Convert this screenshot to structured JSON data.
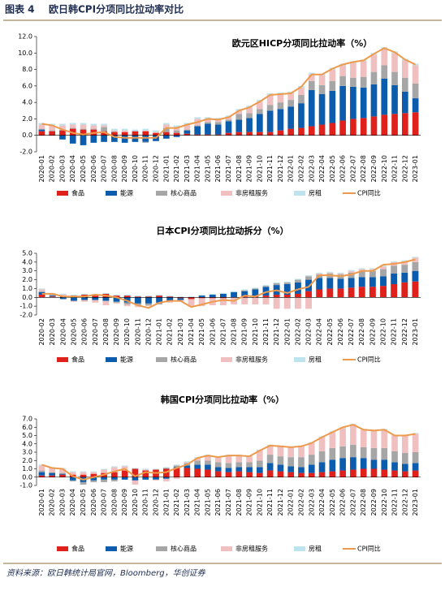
{
  "header": {
    "label": "图表 4",
    "title": "欧日韩CPI分项同比拉动率对比"
  },
  "source": "资料来源：欧日韩统计局官网，Bloomberg，华创证券",
  "chart_data": [
    {
      "type": "bar",
      "stacked": true,
      "title": "欧元区HICP分项同比拉动率（%）",
      "categories": [
        "2020-01",
        "2020-02",
        "2020-03",
        "2020-04",
        "2020-05",
        "2020-06",
        "2020-07",
        "2020-08",
        "2020-09",
        "2020-10",
        "2020-11",
        "2020-12",
        "2021-01",
        "2021-02",
        "2021-03",
        "2021-04",
        "2021-05",
        "2021-06",
        "2021-07",
        "2021-08",
        "2021-09",
        "2021-10",
        "2021-11",
        "2021-12",
        "2022-01",
        "2022-02",
        "2022-03",
        "2022-04",
        "2022-05",
        "2022-06",
        "2022-07",
        "2022-08",
        "2022-09",
        "2022-10",
        "2022-11",
        "2022-12",
        "2023-01"
      ],
      "ylim": [
        -2,
        12
      ],
      "yticks": [
        {
          "value": -2,
          "label": "-2.0"
        },
        {
          "value": 0,
          "label": "0.0"
        },
        {
          "value": 2,
          "label": "2.0"
        },
        {
          "value": 4,
          "label": "4.0"
        },
        {
          "value": 6,
          "label": "6.0"
        },
        {
          "value": 8,
          "label": "8.0"
        },
        {
          "value": 10,
          "label": "10.0"
        },
        {
          "value": 12,
          "label": "12.0"
        }
      ],
      "series": [
        {
          "name": "食品",
          "color": "#e0201b",
          "values": [
            0.5,
            0.5,
            0.6,
            0.8,
            0.7,
            0.7,
            0.5,
            0.4,
            0.4,
            0.5,
            0.5,
            0.3,
            0.4,
            0.3,
            0.2,
            0.1,
            0.1,
            0.1,
            0.3,
            0.4,
            0.4,
            0.4,
            0.4,
            0.6,
            0.8,
            0.9,
            1.1,
            1.3,
            1.5,
            1.8,
            2.0,
            2.1,
            2.3,
            2.5,
            2.6,
            2.7,
            2.8
          ]
        },
        {
          "name": "能源",
          "color": "#0b5cad",
          "values": [
            0.2,
            0.0,
            -0.5,
            -1.0,
            -1.2,
            -0.9,
            -0.8,
            -0.8,
            -0.9,
            -0.8,
            -0.8,
            -0.7,
            -0.4,
            -0.2,
            0.4,
            1.0,
            1.3,
            1.2,
            1.4,
            1.5,
            1.7,
            2.2,
            2.6,
            2.6,
            2.7,
            3.0,
            4.4,
            3.7,
            3.9,
            4.2,
            3.9,
            3.7,
            3.9,
            4.4,
            3.5,
            2.6,
            1.7
          ]
        },
        {
          "name": "核心商品",
          "color": "#a6a6a6",
          "values": [
            0.1,
            0.1,
            0.1,
            0.1,
            0.1,
            0.1,
            0.5,
            0.1,
            0.0,
            0.0,
            -0.1,
            0.0,
            0.5,
            0.3,
            0.1,
            0.1,
            0.2,
            0.3,
            0.2,
            0.7,
            0.6,
            0.6,
            0.7,
            0.8,
            0.8,
            1.0,
            1.1,
            1.1,
            1.2,
            1.2,
            1.1,
            1.3,
            1.5,
            1.6,
            1.6,
            1.7,
            1.8
          ]
        },
        {
          "name": "非房租服务",
          "color": "#f0c0c0",
          "values": [
            0.5,
            0.6,
            0.5,
            0.4,
            0.5,
            0.4,
            0.2,
            0.1,
            0.2,
            0.0,
            0.1,
            0.1,
            0.4,
            0.4,
            0.6,
            0.8,
            0.4,
            0.3,
            0.3,
            0.4,
            0.7,
            0.9,
            1.2,
            1.0,
            0.8,
            0.9,
            0.8,
            1.2,
            1.4,
            1.3,
            1.8,
            1.9,
            2.1,
            2.0,
            2.3,
            2.1,
            2.2
          ]
        },
        {
          "name": "房租",
          "color": "#bde3ec",
          "values": [
            0.2,
            0.2,
            0.2,
            0.2,
            0.2,
            0.2,
            0.2,
            0.2,
            0.2,
            0.2,
            0.2,
            0.2,
            0.2,
            0.2,
            0.2,
            0.2,
            0.2,
            0.2,
            0.2,
            0.2,
            0.2,
            0.2,
            0.2,
            0.2,
            0.2,
            0.2,
            0.2,
            0.2,
            0.2,
            0.2,
            0.2,
            0.2,
            0.2,
            0.2,
            0.2,
            0.2,
            0.2
          ]
        },
        {
          "name": "CPI同比",
          "type": "line",
          "color": "#ed9a4c",
          "values": [
            1.4,
            1.2,
            0.7,
            0.3,
            0.1,
            0.3,
            0.4,
            -0.2,
            -0.3,
            -0.3,
            -0.3,
            -0.3,
            0.9,
            0.9,
            1.3,
            1.6,
            2.0,
            1.9,
            2.2,
            3.0,
            3.4,
            4.1,
            4.9,
            5.0,
            5.1,
            5.9,
            7.4,
            7.4,
            8.1,
            8.6,
            8.9,
            9.1,
            9.9,
            10.6,
            10.1,
            9.2,
            8.6
          ]
        }
      ]
    },
    {
      "type": "bar",
      "stacked": true,
      "title": "日本CPI分项同比拉动拆分（%）",
      "categories": [
        "2020-02",
        "2020-03",
        "2020-04",
        "2020-05",
        "2020-06",
        "2020-07",
        "2020-08",
        "2020-09",
        "2020-10",
        "2020-11",
        "2020-12",
        "2021-01",
        "2021-02",
        "2021-03",
        "2021-04",
        "2021-05",
        "2021-06",
        "2021-07",
        "2021-08",
        "2021-09",
        "2021-10",
        "2021-11",
        "2021-12",
        "2022-01",
        "2022-02",
        "2022-03",
        "2022-04",
        "2022-05",
        "2022-06",
        "2022-07",
        "2022-08",
        "2022-09",
        "2022-10",
        "2022-11",
        "2022-12",
        "2023-01"
      ],
      "ylim": [
        -2,
        5
      ],
      "yticks": [
        {
          "value": -2,
          "label": "-2.0"
        },
        {
          "value": -1,
          "label": "-1.0"
        },
        {
          "value": 0,
          "label": "0.0"
        },
        {
          "value": 1,
          "label": "1.0"
        },
        {
          "value": 2,
          "label": "2.0"
        },
        {
          "value": 3,
          "label": "3.0"
        },
        {
          "value": 4,
          "label": "4.0"
        },
        {
          "value": 5,
          "label": "5.0"
        }
      ],
      "series": [
        {
          "name": "食品",
          "color": "#e0201b",
          "values": [
            0.3,
            0.1,
            0.1,
            0.2,
            0.3,
            0.2,
            0.4,
            0.2,
            0.2,
            0.1,
            0.1,
            0.2,
            0.1,
            -0.1,
            -0.2,
            -0.1,
            -0.1,
            -0.1,
            0.0,
            0.1,
            0.1,
            0.2,
            0.3,
            0.3,
            0.4,
            0.7,
            0.9,
            1.0,
            1.0,
            1.1,
            1.2,
            1.2,
            1.3,
            1.5,
            1.7,
            1.8
          ]
        },
        {
          "name": "能源",
          "color": "#0b5cad",
          "values": [
            0.3,
            0.1,
            -0.2,
            -0.4,
            -0.3,
            -0.3,
            -0.4,
            -0.5,
            -0.6,
            -0.7,
            -0.7,
            -0.6,
            -0.4,
            -0.2,
            0.0,
            0.2,
            0.3,
            0.4,
            0.6,
            0.6,
            0.8,
            1.0,
            1.1,
            1.2,
            1.3,
            1.3,
            1.3,
            1.2,
            1.1,
            1.1,
            1.1,
            1.1,
            1.1,
            1.2,
            1.1,
            1.2
          ]
        },
        {
          "name": "核心商品",
          "color": "#a6a6a6",
          "values": [
            0.1,
            0.1,
            0.1,
            0.0,
            0.0,
            0.1,
            0.0,
            -0.1,
            -0.2,
            -0.2,
            -0.2,
            -0.2,
            -0.1,
            0.0,
            0.0,
            0.0,
            0.0,
            0.0,
            0.0,
            0.1,
            0.1,
            0.1,
            0.2,
            0.2,
            0.3,
            0.4,
            0.4,
            0.5,
            0.5,
            0.6,
            0.7,
            0.7,
            0.8,
            0.9,
            0.9,
            1.0
          ]
        },
        {
          "name": "非房租服务",
          "color": "#f0c0c0",
          "values": [
            0.2,
            0.1,
            0.1,
            -0.1,
            -0.2,
            -0.3,
            -0.5,
            -0.1,
            -0.2,
            -0.2,
            -0.1,
            0.0,
            -0.1,
            -0.2,
            -0.8,
            -0.9,
            -0.8,
            -0.8,
            -0.8,
            -0.8,
            -0.8,
            -0.8,
            -1.3,
            -1.3,
            -1.3,
            -1.3,
            0.1,
            0.1,
            0.1,
            0.2,
            0.2,
            0.2,
            0.3,
            0.4,
            0.4,
            0.5
          ]
        },
        {
          "name": "房租",
          "color": "#bde3ec",
          "values": [
            0.1,
            0.1,
            0.1,
            0.1,
            0.1,
            0.1,
            0.1,
            0.1,
            0.1,
            0.1,
            0.1,
            0.1,
            0.1,
            0.1,
            0.1,
            0.1,
            0.1,
            0.1,
            0.1,
            0.1,
            0.1,
            0.1,
            0.1,
            0.1,
            0.1,
            0.1,
            0.1,
            0.1,
            0.1,
            0.1,
            0.1,
            0.1,
            0.1,
            0.1,
            0.1,
            0.1
          ]
        },
        {
          "name": "CPI同比",
          "type": "line",
          "color": "#ed9a4c",
          "values": [
            0.4,
            0.4,
            0.1,
            0.1,
            0.1,
            0.3,
            0.2,
            0.0,
            -0.4,
            -0.9,
            -1.2,
            -0.6,
            -0.4,
            -0.4,
            -1.1,
            -0.8,
            -0.5,
            -0.3,
            -0.4,
            0.2,
            0.1,
            0.6,
            0.8,
            0.5,
            0.9,
            1.2,
            2.5,
            2.5,
            2.4,
            2.6,
            3.0,
            3.0,
            3.7,
            3.8,
            4.0,
            4.3
          ]
        }
      ]
    },
    {
      "type": "bar",
      "stacked": true,
      "title": "韩国CPI分项同比拉动率（%）",
      "categories": [
        "2020-01",
        "2020-02",
        "2020-03",
        "2020-04",
        "2020-05",
        "2020-06",
        "2020-07",
        "2020-08",
        "2020-09",
        "2020-10",
        "2020-11",
        "2020-12",
        "2021-01",
        "2021-02",
        "2021-03",
        "2021-04",
        "2021-05",
        "2021-06",
        "2021-07",
        "2021-08",
        "2021-09",
        "2021-10",
        "2021-11",
        "2021-12",
        "2022-01",
        "2022-02",
        "2022-03",
        "2022-04",
        "2022-05",
        "2022-06",
        "2022-07",
        "2022-08",
        "2022-09",
        "2022-10",
        "2022-11",
        "2022-12",
        "2023-01"
      ],
      "ylim": [
        -1,
        7
      ],
      "yticks": [
        {
          "value": -1,
          "label": "-1.0"
        },
        {
          "value": 0,
          "label": "0.0"
        },
        {
          "value": 1,
          "label": "1.0"
        },
        {
          "value": 2,
          "label": "2.0"
        },
        {
          "value": 3,
          "label": "3.0"
        },
        {
          "value": 4,
          "label": "4.0"
        },
        {
          "value": 5,
          "label": "5.0"
        },
        {
          "value": 6,
          "label": "6.0"
        },
        {
          "value": 7,
          "label": "7.0"
        }
      ],
      "series": [
        {
          "name": "食品",
          "color": "#e0201b",
          "values": [
            0.2,
            0.2,
            0.3,
            0.3,
            0.3,
            0.4,
            0.5,
            0.6,
            0.8,
            1.0,
            0.8,
            0.9,
            1.0,
            1.1,
            1.1,
            1.0,
            0.9,
            0.7,
            0.6,
            0.7,
            0.6,
            0.5,
            0.8,
            0.7,
            0.6,
            0.5,
            0.5,
            0.6,
            0.7,
            0.8,
            0.9,
            1.0,
            1.0,
            0.9,
            0.8,
            0.7,
            0.8
          ]
        },
        {
          "name": "能源",
          "color": "#0b5cad",
          "values": [
            0.4,
            0.3,
            0.1,
            -0.4,
            -0.6,
            -0.4,
            -0.3,
            -0.3,
            -0.3,
            -0.4,
            -0.3,
            -0.3,
            -0.2,
            0.1,
            0.3,
            0.5,
            0.6,
            0.5,
            0.5,
            0.5,
            0.6,
            0.7,
            0.9,
            0.8,
            0.7,
            0.7,
            1.0,
            1.2,
            1.4,
            1.5,
            1.5,
            1.3,
            1.1,
            1.2,
            1.0,
            0.9,
            0.9
          ]
        },
        {
          "name": "核心商品",
          "color": "#a6a6a6",
          "values": [
            0.2,
            0.1,
            0.1,
            -0.1,
            -0.3,
            -0.2,
            -0.3,
            -0.2,
            0.0,
            0.0,
            0.0,
            0.0,
            0.1,
            0.2,
            0.3,
            0.5,
            0.5,
            0.6,
            0.6,
            0.6,
            0.6,
            0.8,
            1.0,
            1.0,
            1.1,
            1.2,
            1.2,
            1.3,
            1.4,
            1.4,
            1.5,
            1.3,
            1.4,
            1.4,
            1.3,
            1.3,
            1.3
          ]
        },
        {
          "name": "非房租服务",
          "color": "#f0c0c0",
          "values": [
            0.6,
            0.5,
            0.5,
            0.3,
            0.3,
            0.2,
            0.4,
            0.6,
            0.5,
            -0.5,
            0.1,
            -0.1,
            -0.3,
            -0.2,
            0.1,
            0.3,
            0.6,
            0.6,
            0.9,
            0.8,
            0.7,
            1.2,
            1.1,
            1.2,
            1.2,
            1.3,
            1.4,
            1.7,
            1.9,
            2.2,
            2.4,
            2.1,
            2.1,
            2.2,
            1.9,
            2.1,
            2.2
          ]
        },
        {
          "name": "房租",
          "color": "#bde3ec",
          "values": [
            0.1,
            0.1,
            0.1,
            0.1,
            0.1,
            0.1,
            0.1,
            0.1,
            0.1,
            0.1,
            0.1,
            0.1,
            0.1,
            0.1,
            0.1,
            0.1,
            0.1,
            0.1,
            0.1,
            0.1,
            0.1,
            0.1,
            0.1,
            0.1,
            0.1,
            0.1,
            0.1,
            0.1,
            0.1,
            0.1,
            0.1,
            0.1,
            0.1,
            0.1,
            0.1,
            0.1,
            0.1
          ]
        },
        {
          "name": "CPI同比",
          "type": "line",
          "color": "#ed9a4c",
          "values": [
            1.5,
            1.1,
            1.0,
            0.1,
            -0.3,
            0.0,
            0.3,
            0.7,
            1.0,
            0.1,
            0.6,
            0.5,
            0.6,
            1.1,
            1.5,
            2.3,
            2.6,
            2.4,
            2.6,
            2.6,
            2.5,
            3.2,
            3.8,
            3.7,
            3.6,
            3.7,
            4.1,
            4.8,
            5.4,
            6.0,
            6.3,
            5.7,
            5.6,
            5.7,
            5.0,
            5.0,
            5.2
          ]
        }
      ]
    }
  ]
}
